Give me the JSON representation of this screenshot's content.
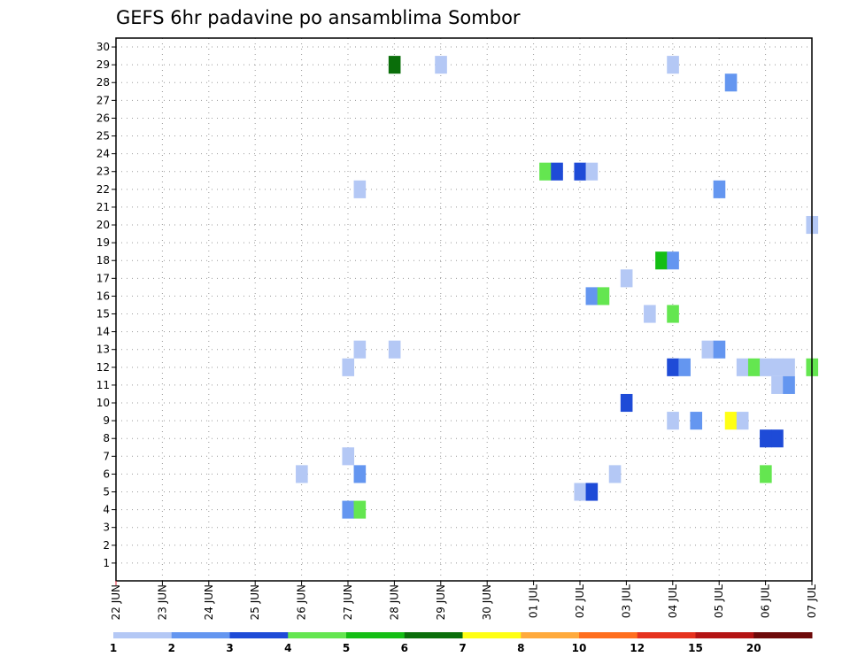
{
  "chart_data": {
    "type": "heatmap",
    "title": "GEFS 6hr padavine po ansamblima Sombor",
    "y_ticks": [
      "1",
      "2",
      "3",
      "4",
      "5",
      "6",
      "7",
      "8",
      "9",
      "10",
      "11",
      "12",
      "13",
      "14",
      "15",
      "16",
      "17",
      "18",
      "19",
      "20",
      "21",
      "22",
      "23",
      "24",
      "25",
      "26",
      "27",
      "28",
      "29",
      "30"
    ],
    "ylim": [
      0,
      30.5
    ],
    "x_ticks": [
      "22 JUN",
      "23 JUN",
      "24 JUN",
      "25 JUN",
      "26 JUN",
      "27 JUN",
      "28 JUN",
      "29 JUN",
      "30 JUN",
      "01 JUL",
      "02 JUL",
      "03 JUL",
      "04 JUL",
      "05 JUL",
      "06 JUL",
      "07 JUL"
    ],
    "xlim": [
      0,
      15
    ],
    "grid": true,
    "legend": {
      "position": "bottom",
      "colors": [
        "#b4c8f5",
        "#6496f0",
        "#1e4bd7",
        "#64e650",
        "#14be14",
        "#0a6e0a",
        "#ffff14",
        "#ffaa3c",
        "#ff6e1e",
        "#e6321e",
        "#b41414",
        "#6e0a0a"
      ],
      "labels": [
        "1",
        "2",
        "3",
        "4",
        "5",
        "6",
        "7",
        "8",
        "10",
        "12",
        "15",
        "20"
      ]
    },
    "values": [
      {
        "day": 6.0,
        "member": 29,
        "level": 6
      },
      {
        "day": 7.0,
        "member": 29,
        "level": 1
      },
      {
        "day": 12.0,
        "member": 29,
        "level": 1
      },
      {
        "day": 13.25,
        "member": 28,
        "level": 2
      },
      {
        "day": 9.25,
        "member": 23,
        "level": 4
      },
      {
        "day": 9.5,
        "member": 23,
        "level": 3
      },
      {
        "day": 10.0,
        "member": 23,
        "level": 3
      },
      {
        "day": 10.25,
        "member": 23,
        "level": 1
      },
      {
        "day": 5.25,
        "member": 22,
        "level": 1
      },
      {
        "day": 13.0,
        "member": 22,
        "level": 2
      },
      {
        "day": 15.0,
        "member": 20,
        "level": 1
      },
      {
        "day": 11.75,
        "member": 18,
        "level": 5
      },
      {
        "day": 12.0,
        "member": 18,
        "level": 2
      },
      {
        "day": 11.0,
        "member": 17,
        "level": 1
      },
      {
        "day": 10.25,
        "member": 16,
        "level": 2
      },
      {
        "day": 10.5,
        "member": 16,
        "level": 4
      },
      {
        "day": 11.5,
        "member": 15,
        "level": 1
      },
      {
        "day": 12.0,
        "member": 15,
        "level": 4
      },
      {
        "day": 5.25,
        "member": 13,
        "level": 1
      },
      {
        "day": 6.0,
        "member": 13,
        "level": 1
      },
      {
        "day": 12.75,
        "member": 13,
        "level": 1
      },
      {
        "day": 13.0,
        "member": 13,
        "level": 2
      },
      {
        "day": 5.0,
        "member": 12,
        "level": 1
      },
      {
        "day": 12.0,
        "member": 12,
        "level": 3
      },
      {
        "day": 12.25,
        "member": 12,
        "level": 2
      },
      {
        "day": 13.5,
        "member": 12,
        "level": 1
      },
      {
        "day": 13.75,
        "member": 12,
        "level": 4
      },
      {
        "day": 14.0,
        "member": 12,
        "level": 1
      },
      {
        "day": 14.25,
        "member": 12,
        "level": 1
      },
      {
        "day": 14.5,
        "member": 12,
        "level": 1
      },
      {
        "day": 15.0,
        "member": 12,
        "level": 4
      },
      {
        "day": 14.25,
        "member": 11,
        "level": 1
      },
      {
        "day": 14.5,
        "member": 11,
        "level": 2
      },
      {
        "day": 11.0,
        "member": 10,
        "level": 3
      },
      {
        "day": 12.0,
        "member": 9,
        "level": 1
      },
      {
        "day": 12.5,
        "member": 9,
        "level": 2
      },
      {
        "day": 13.25,
        "member": 9,
        "level": 7
      },
      {
        "day": 13.5,
        "member": 9,
        "level": 1
      },
      {
        "day": 14.0,
        "member": 8,
        "level": 3
      },
      {
        "day": 14.25,
        "member": 8,
        "level": 3
      },
      {
        "day": 5.0,
        "member": 7,
        "level": 1
      },
      {
        "day": 4.0,
        "member": 6,
        "level": 1
      },
      {
        "day": 5.25,
        "member": 6,
        "level": 2
      },
      {
        "day": 10.75,
        "member": 6,
        "level": 1
      },
      {
        "day": 14.0,
        "member": 6,
        "level": 4
      },
      {
        "day": 10.0,
        "member": 5,
        "level": 1
      },
      {
        "day": 10.25,
        "member": 5,
        "level": 3
      },
      {
        "day": 5.0,
        "member": 4,
        "level": 2
      },
      {
        "day": 5.25,
        "member": 4,
        "level": 4
      }
    ]
  }
}
